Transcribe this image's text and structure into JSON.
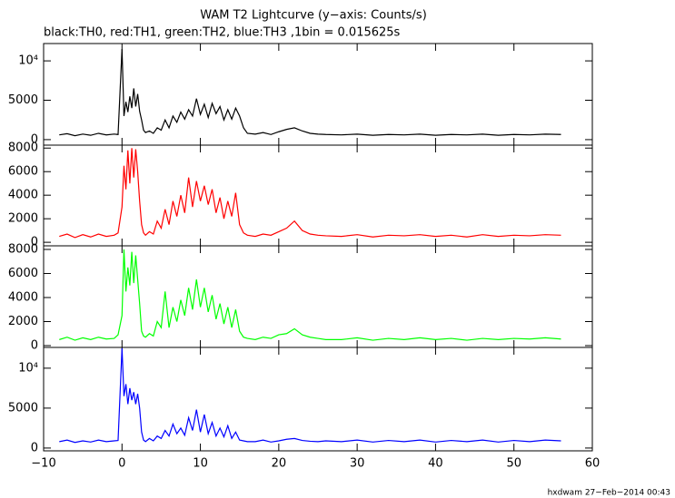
{
  "footer": "hxdwam 27−Feb−2014 00:43",
  "chart_data": [
    {
      "type": "line",
      "title": "WAM T2 Lightcurve (y−axis: Counts/s)",
      "subtitle": "black:TH0, red:TH1, green:TH2, blue:TH3 ,1bin = 0.015625s",
      "x": [
        -8,
        -7,
        -6,
        -5,
        -4,
        -3,
        -2,
        -1,
        -0.5,
        0,
        0.25,
        0.5,
        0.75,
        1,
        1.25,
        1.5,
        1.75,
        2,
        2.25,
        2.5,
        2.75,
        3,
        3.5,
        4,
        4.5,
        5,
        5.5,
        6,
        6.5,
        7,
        7.5,
        8,
        8.5,
        9,
        9.5,
        10,
        10.5,
        11,
        11.5,
        12,
        12.5,
        13,
        13.5,
        14,
        14.5,
        15,
        15.5,
        16,
        17,
        18,
        19,
        20,
        21,
        22,
        23,
        24,
        25,
        26,
        28,
        30,
        32,
        34,
        36,
        38,
        40,
        42,
        44,
        46,
        48,
        50,
        52,
        54,
        56
      ],
      "series": [
        {
          "color": "#000000",
          "values": [
            600,
            750,
            500,
            700,
            550,
            800,
            600,
            700,
            650,
            11500,
            3000,
            4800,
            3500,
            5500,
            4000,
            6500,
            4200,
            5800,
            3600,
            2500,
            1200,
            900,
            1100,
            800,
            1500,
            1200,
            2500,
            1500,
            3000,
            2200,
            3500,
            2600,
            3800,
            3000,
            5200,
            3200,
            4500,
            2800,
            4600,
            3300,
            4200,
            2500,
            3800,
            2600,
            4000,
            3000,
            1500,
            800,
            700,
            900,
            650,
            1000,
            1300,
            1500,
            1100,
            800,
            700,
            650,
            600,
            700,
            550,
            650,
            600,
            700,
            550,
            650,
            600,
            700,
            550,
            650,
            600,
            700,
            650
          ]
        }
      ],
      "xlim": [
        -10,
        60
      ],
      "xticks": [
        {
          "value": -10,
          "label": "−10"
        },
        0,
        10,
        20,
        30,
        40,
        50,
        60
      ],
      "ylim": [
        -700,
        12200
      ],
      "yticks": [
        0,
        5000,
        {
          "value": 10000,
          "label": "10⁴"
        }
      ]
    },
    {
      "type": "line",
      "x": [
        -8,
        -7,
        -6,
        -5,
        -4,
        -3,
        -2,
        -1,
        -0.5,
        0,
        0.25,
        0.5,
        0.75,
        1,
        1.25,
        1.5,
        1.75,
        2,
        2.25,
        2.5,
        2.75,
        3,
        3.5,
        4,
        4.5,
        5,
        5.5,
        6,
        6.5,
        7,
        7.5,
        8,
        8.5,
        9,
        9.5,
        10,
        10.5,
        11,
        11.5,
        12,
        12.5,
        13,
        13.5,
        14,
        14.5,
        15,
        15.5,
        16,
        17,
        18,
        19,
        20,
        21,
        22,
        23,
        24,
        25,
        26,
        28,
        30,
        32,
        34,
        36,
        38,
        40,
        42,
        44,
        46,
        48,
        50,
        52,
        54,
        56
      ],
      "series": [
        {
          "color": "#ff0000",
          "values": [
            500,
            700,
            400,
            650,
            450,
            700,
            500,
            600,
            800,
            3000,
            6500,
            4500,
            7800,
            5000,
            8000,
            5500,
            7900,
            6000,
            3500,
            1500,
            800,
            600,
            900,
            700,
            1800,
            1200,
            2800,
            1500,
            3500,
            2200,
            4000,
            2500,
            5500,
            3000,
            5200,
            3500,
            4800,
            3200,
            4500,
            2500,
            3800,
            2000,
            3500,
            2200,
            4200,
            1500,
            800,
            600,
            500,
            700,
            600,
            900,
            1200,
            1800,
            1000,
            700,
            600,
            550,
            500,
            650,
            450,
            600,
            550,
            650,
            500,
            600,
            450,
            650,
            500,
            600,
            550,
            650,
            600
          ]
        }
      ],
      "xlim": [
        -10,
        60
      ],
      "xticks": [
        -10,
        0,
        10,
        20,
        30,
        40,
        50,
        60
      ],
      "ylim": [
        -300,
        8250
      ],
      "yticks": [
        0,
        2000,
        4000,
        6000,
        8000
      ]
    },
    {
      "type": "line",
      "x": [
        -8,
        -7,
        -6,
        -5,
        -4,
        -3,
        -2,
        -1,
        -0.5,
        0,
        0.25,
        0.5,
        0.75,
        1,
        1.25,
        1.5,
        1.75,
        2,
        2.25,
        2.5,
        2.75,
        3,
        3.5,
        4,
        4.5,
        5,
        5.5,
        6,
        6.5,
        7,
        7.5,
        8,
        8.5,
        9,
        9.5,
        10,
        10.5,
        11,
        11.5,
        12,
        12.5,
        13,
        13.5,
        14,
        14.5,
        15,
        15.5,
        16,
        17,
        18,
        19,
        20,
        21,
        22,
        23,
        24,
        25,
        26,
        28,
        30,
        32,
        34,
        36,
        38,
        40,
        42,
        44,
        46,
        48,
        50,
        52,
        54,
        56
      ],
      "series": [
        {
          "color": "#00ff00",
          "values": [
            500,
            700,
            450,
            650,
            500,
            700,
            550,
            600,
            900,
            2500,
            8000,
            4500,
            6500,
            5000,
            7800,
            5200,
            7500,
            5500,
            3500,
            1200,
            800,
            700,
            1000,
            800,
            2000,
            1500,
            4500,
            1500,
            3200,
            2000,
            3800,
            2500,
            4800,
            3000,
            5500,
            3200,
            4800,
            2800,
            4200,
            2200,
            3500,
            1800,
            3200,
            1500,
            3000,
            1200,
            700,
            600,
            500,
            700,
            600,
            900,
            1000,
            1400,
            900,
            700,
            600,
            500,
            500,
            650,
            450,
            600,
            500,
            650,
            500,
            600,
            450,
            600,
            500,
            600,
            550,
            650,
            550
          ]
        }
      ],
      "xlim": [
        -10,
        60
      ],
      "xticks": [
        -10,
        0,
        10,
        20,
        30,
        40,
        50,
        60
      ],
      "ylim": [
        -150,
        8300
      ],
      "yticks": [
        0,
        2000,
        4000,
        6000,
        8000
      ]
    },
    {
      "type": "line",
      "x": [
        -8,
        -7,
        -6,
        -5,
        -4,
        -3,
        -2,
        -1,
        -0.5,
        0,
        0.25,
        0.5,
        0.75,
        1,
        1.25,
        1.5,
        1.75,
        2,
        2.25,
        2.5,
        2.75,
        3,
        3.5,
        4,
        4.5,
        5,
        5.5,
        6,
        6.5,
        7,
        7.5,
        8,
        8.5,
        9,
        9.5,
        10,
        10.5,
        11,
        11.5,
        12,
        12.5,
        13,
        13.5,
        14,
        14.5,
        15,
        15.5,
        16,
        17,
        18,
        19,
        20,
        21,
        22,
        23,
        24,
        25,
        26,
        28,
        30,
        32,
        34,
        36,
        38,
        40,
        42,
        44,
        46,
        48,
        50,
        52,
        54,
        56
      ],
      "series": [
        {
          "color": "#0000ff",
          "values": [
            800,
            1000,
            700,
            900,
            750,
            1000,
            800,
            900,
            950,
            12500,
            6500,
            8000,
            5500,
            7500,
            6000,
            7000,
            5500,
            6800,
            5000,
            2000,
            1000,
            800,
            1200,
            900,
            1500,
            1200,
            2200,
            1500,
            3000,
            1800,
            2500,
            1600,
            3800,
            2200,
            4800,
            2000,
            4200,
            1800,
            3200,
            1500,
            2500,
            1400,
            2800,
            1200,
            2000,
            1000,
            900,
            800,
            800,
            1000,
            750,
            900,
            1100,
            1200,
            950,
            850,
            800,
            900,
            800,
            1000,
            750,
            950,
            800,
            1000,
            750,
            950,
            800,
            1000,
            750,
            950,
            800,
            1000,
            900
          ]
        }
      ],
      "xlim": [
        -10,
        60
      ],
      "xticks": [
        {
          "value": -10,
          "label": "−10"
        },
        0,
        10,
        20,
        30,
        40,
        50,
        60
      ],
      "show_xtick_labels": true,
      "ylim": [
        -350,
        12600
      ],
      "yticks": [
        0,
        5000,
        {
          "value": 10000,
          "label": "10⁴"
        }
      ]
    }
  ]
}
